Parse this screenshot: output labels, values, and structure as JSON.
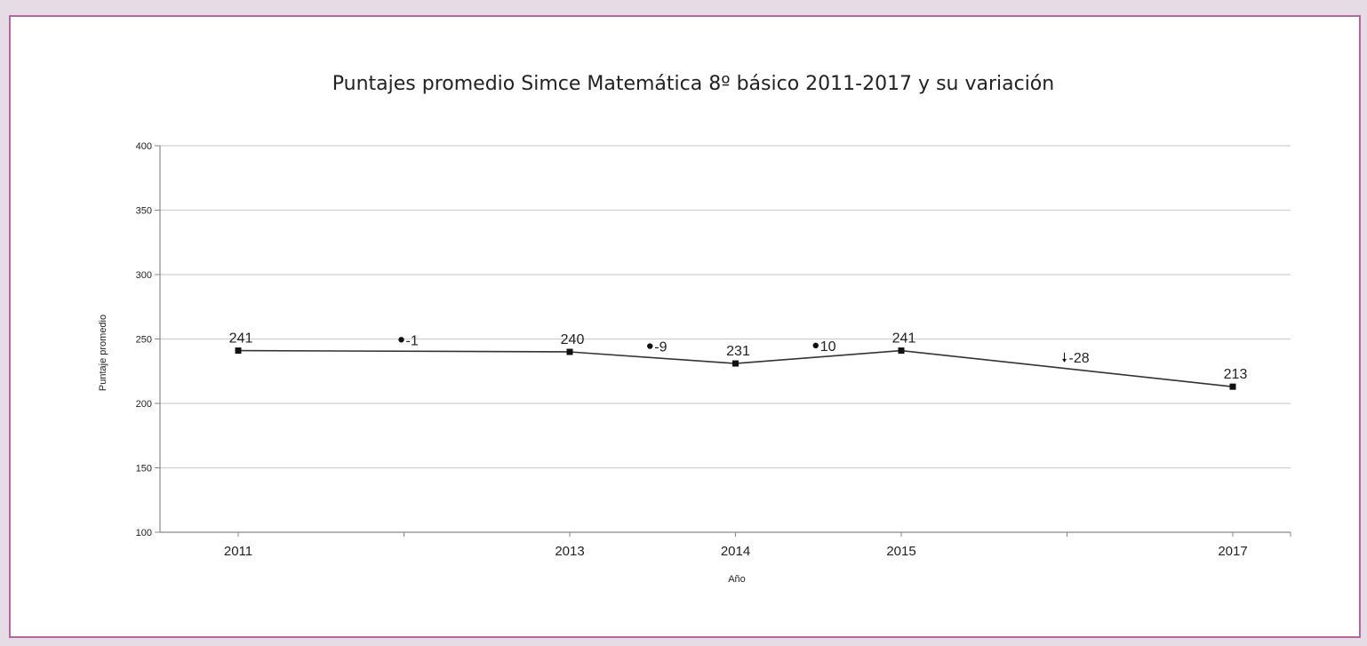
{
  "chart_data": {
    "type": "line",
    "title": "Puntajes promedio Simce Matemática 8º básico 2011-2017 y su variación",
    "xlabel": "Año",
    "ylabel": "Puntaje promedio",
    "ylim": [
      100,
      400
    ],
    "yticks": [
      "100",
      "150",
      "200",
      "250",
      "300",
      "350",
      "400"
    ],
    "grid": true,
    "categories": [
      "2011",
      "2013",
      "2014",
      "2015",
      "2017"
    ],
    "x": [
      2011,
      2013,
      2014,
      2015,
      2017
    ],
    "values": [
      241,
      240,
      231,
      241,
      213
    ],
    "value_labels": [
      "241",
      "240",
      "231",
      "241",
      "213"
    ],
    "variations": [
      {
        "between": [
          "2011",
          "2013"
        ],
        "value": -1,
        "label": "-1",
        "marker": "dot"
      },
      {
        "between": [
          "2013",
          "2014"
        ],
        "value": -9,
        "label": "-9",
        "marker": "dot"
      },
      {
        "between": [
          "2014",
          "2015"
        ],
        "value": 10,
        "label": "10",
        "marker": "dot"
      },
      {
        "between": [
          "2015",
          "2017"
        ],
        "value": -28,
        "label": "-28",
        "marker": "arrow-down"
      }
    ],
    "colors": {
      "line": "#333333",
      "marker": "#111111",
      "grid": "#cfcfcf",
      "axis": "#888888",
      "border": "#b7649f",
      "background": "#e6dce6"
    }
  }
}
